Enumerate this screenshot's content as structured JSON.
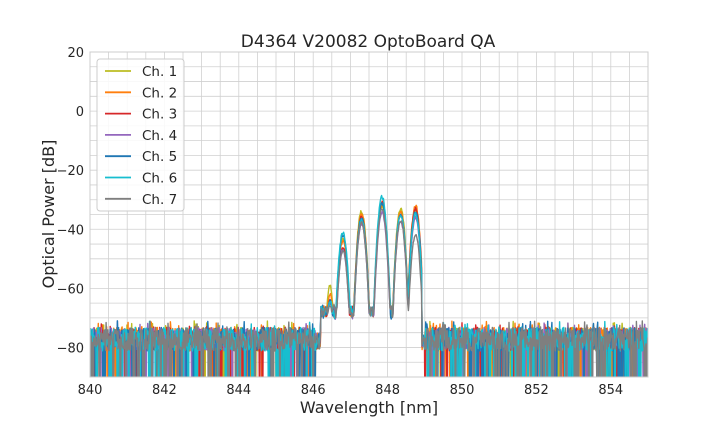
{
  "chart_data": {
    "type": "line",
    "title": "D4364 V20082 OptoBoard QA",
    "xlabel": "Wavelength [nm]",
    "ylabel": "Optical Power [dB]",
    "xlim": [
      840,
      855
    ],
    "ylim": [
      -90,
      20
    ],
    "x_ticks": [
      840,
      842,
      844,
      846,
      848,
      850,
      852,
      854
    ],
    "y_ticks": [
      20,
      0,
      -20,
      -40,
      -60,
      -80
    ],
    "x_tick_labels": [
      "840",
      "842",
      "844",
      "846",
      "848",
      "850",
      "852",
      "854"
    ],
    "y_tick_labels": [
      "20",
      "0",
      "−20",
      "−40",
      "−60",
      "−80"
    ],
    "grid": true,
    "legend_position": "top-left",
    "noise_floor_db": -78,
    "series": [
      {
        "name": "Ch. 1",
        "color": "#bcbd22",
        "peaks": [
          {
            "x": 846.45,
            "y": -59
          },
          {
            "x": 846.8,
            "y": -43
          },
          {
            "x": 847.3,
            "y": -34
          },
          {
            "x": 847.85,
            "y": -32
          },
          {
            "x": 848.35,
            "y": -33
          },
          {
            "x": 848.75,
            "y": -34
          }
        ]
      },
      {
        "name": "Ch. 2",
        "color": "#ff7f0e",
        "peaks": [
          {
            "x": 846.45,
            "y": -62
          },
          {
            "x": 846.8,
            "y": -44
          },
          {
            "x": 847.3,
            "y": -35
          },
          {
            "x": 847.85,
            "y": -31
          },
          {
            "x": 848.35,
            "y": -34
          },
          {
            "x": 848.75,
            "y": -32
          }
        ]
      },
      {
        "name": "Ch. 3",
        "color": "#d62728",
        "peaks": [
          {
            "x": 846.45,
            "y": -64
          },
          {
            "x": 846.8,
            "y": -46
          },
          {
            "x": 847.3,
            "y": -36
          },
          {
            "x": 847.85,
            "y": -31
          },
          {
            "x": 848.35,
            "y": -35
          },
          {
            "x": 848.75,
            "y": -33
          }
        ]
      },
      {
        "name": "Ch. 4",
        "color": "#9467bd",
        "peaks": [
          {
            "x": 846.45,
            "y": -65
          },
          {
            "x": 846.8,
            "y": -47
          },
          {
            "x": 847.3,
            "y": -38
          },
          {
            "x": 847.85,
            "y": -34
          },
          {
            "x": 848.35,
            "y": -37
          },
          {
            "x": 848.75,
            "y": -36
          }
        ]
      },
      {
        "name": "Ch. 5",
        "color": "#1f77b4",
        "peaks": [
          {
            "x": 846.45,
            "y": -64
          },
          {
            "x": 846.8,
            "y": -42
          },
          {
            "x": 847.3,
            "y": -36
          },
          {
            "x": 847.85,
            "y": -31
          },
          {
            "x": 848.35,
            "y": -35
          },
          {
            "x": 848.75,
            "y": -34
          }
        ]
      },
      {
        "name": "Ch. 6",
        "color": "#17becf",
        "peaks": [
          {
            "x": 846.45,
            "y": -64
          },
          {
            "x": 846.8,
            "y": -41
          },
          {
            "x": 847.3,
            "y": -37
          },
          {
            "x": 847.85,
            "y": -29
          },
          {
            "x": 848.35,
            "y": -35
          },
          {
            "x": 848.75,
            "y": -35
          }
        ]
      },
      {
        "name": "Ch. 7",
        "color": "#7f7f7f",
        "peaks": [
          {
            "x": 846.45,
            "y": -66
          },
          {
            "x": 846.8,
            "y": -47
          },
          {
            "x": 847.3,
            "y": -38
          },
          {
            "x": 847.85,
            "y": -33
          },
          {
            "x": 848.35,
            "y": -37
          },
          {
            "x": 848.75,
            "y": -42
          }
        ]
      }
    ]
  }
}
